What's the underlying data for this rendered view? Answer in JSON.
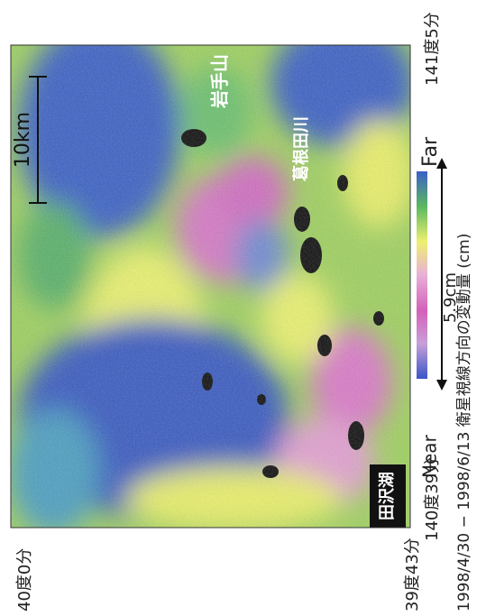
{
  "corners": {
    "top_left_lat": "40度0分",
    "bottom_left_lat": "39度43分",
    "bottom_left_lon": "140度39分",
    "bottom_right_lon": "141度5分"
  },
  "map_labels": {
    "mountain": "岩手山",
    "river": "葛根田川",
    "lake": "田沢湖",
    "scale": "10km"
  },
  "legend": {
    "near": "Near",
    "far": "Far",
    "range": "5.9cm",
    "caption": "1998/4/30 − 1998/6/13 衛星視線方向の変動量 (cm)"
  }
}
